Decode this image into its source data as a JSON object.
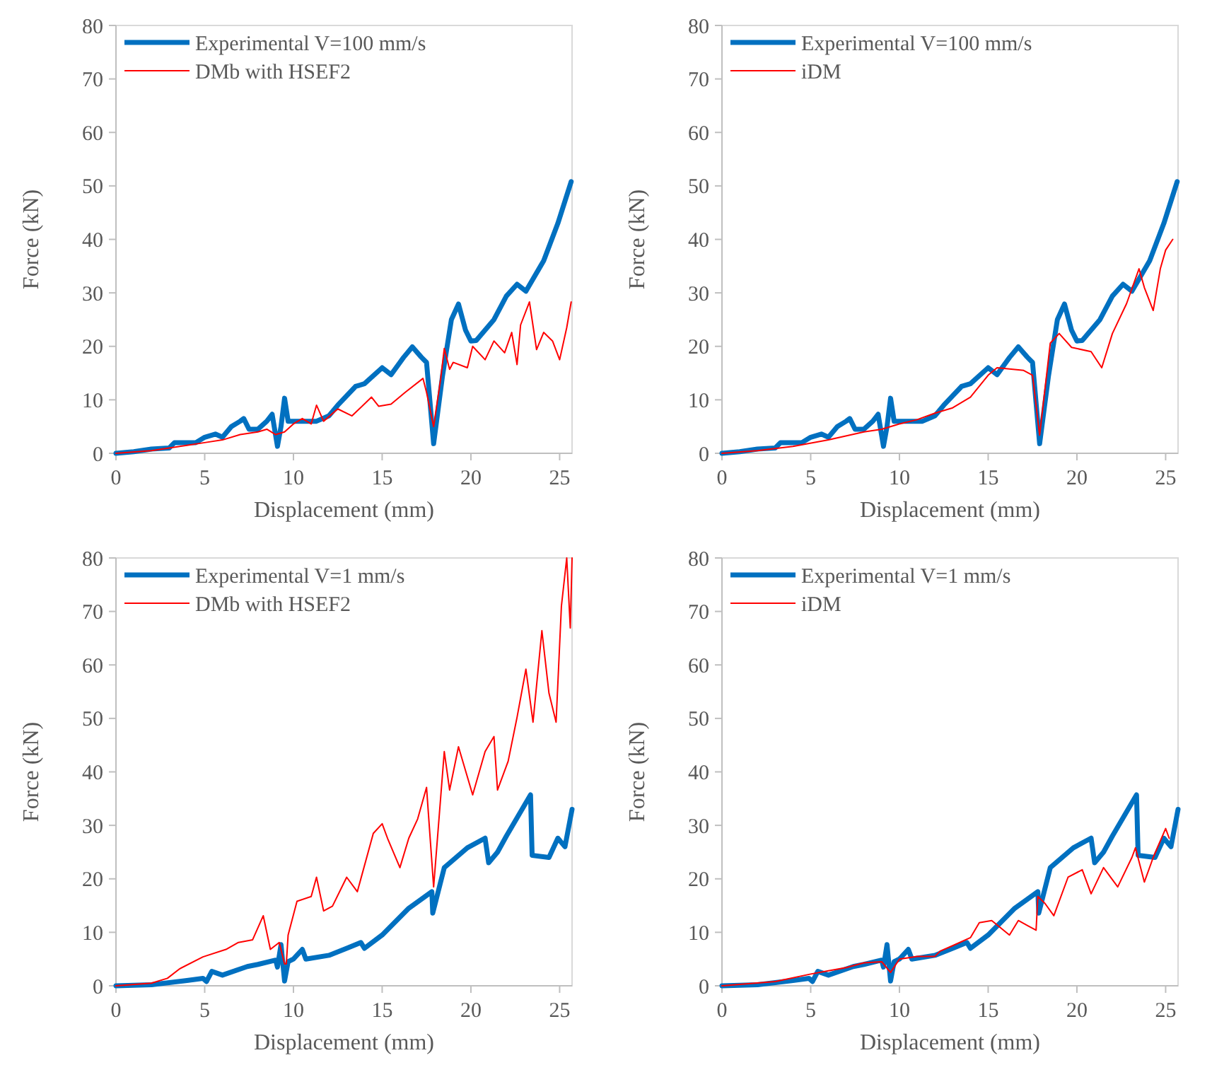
{
  "chart_data": [
    {
      "type": "line",
      "xlabel": "Displacement (mm)",
      "ylabel": "Force (kN)",
      "xlim": [
        0,
        25.7
      ],
      "ylim": [
        0,
        80
      ],
      "xticks": [
        0,
        5,
        10,
        15,
        20,
        25
      ],
      "yticks": [
        0,
        10,
        20,
        30,
        40,
        50,
        60,
        70,
        80
      ],
      "grid": false,
      "legend": "top left",
      "marker": "none",
      "line_style": "solid",
      "series": [
        {
          "name": "Experimental V=100 mm/s",
          "color": "#0070c0",
          "x": [
            0,
            1,
            2,
            3,
            3.3,
            3.8,
            4.1,
            4.5,
            5,
            5.6,
            6,
            6.5,
            7,
            7.2,
            7.5,
            8,
            8.5,
            8.8,
            9.1,
            9.3,
            9.5,
            9.7,
            10,
            10.5,
            11.3,
            12,
            12.5,
            13.5,
            14,
            15,
            15.5,
            16.2,
            16.7,
            17.2,
            17.5,
            17.9,
            18.4,
            18.9,
            19.3,
            19.7,
            20,
            20.3,
            21.3,
            22,
            22.6,
            23.1,
            24.1,
            24.9,
            25.65
          ],
          "values": [
            0,
            0.3,
            0.8,
            1,
            2,
            2,
            2,
            2,
            3,
            3.6,
            3,
            5,
            6,
            6.5,
            4.5,
            4.5,
            6,
            7.3,
            1.3,
            5,
            10.3,
            6,
            6,
            6,
            6,
            7,
            9,
            12.5,
            13,
            16,
            14.7,
            17.9,
            19.9,
            18,
            17,
            1.8,
            14.5,
            25,
            27.9,
            23,
            21,
            21.1,
            25,
            29.4,
            31.6,
            30.3,
            36,
            43,
            50.8
          ]
        },
        {
          "name": "DMb with HSEF2",
          "color": "#ff0000",
          "x": [
            0,
            2,
            4,
            5,
            6,
            7,
            8,
            8.5,
            9,
            9.5,
            10,
            10.5,
            11,
            11.3,
            11.7,
            12.5,
            13.3,
            14.4,
            14.8,
            15.5,
            16.3,
            17.3,
            17.5,
            17.9,
            18.3,
            18.5,
            18.8,
            19,
            19.8,
            20.1,
            20.8,
            21.3,
            21.9,
            22.3,
            22.6,
            22.8,
            23.3,
            23.7,
            24.1,
            24.6,
            25,
            25.4,
            25.65
          ],
          "values": [
            0,
            0.5,
            1.5,
            2,
            2.5,
            3.5,
            4,
            4.5,
            3.5,
            4,
            5.5,
            6.5,
            5.5,
            9,
            6,
            8.3,
            7,
            10.5,
            8.8,
            9.2,
            11.4,
            14,
            11.4,
            5,
            14,
            19.6,
            15.7,
            17,
            16,
            20,
            17.5,
            21,
            18.8,
            22.6,
            16.6,
            24,
            28.3,
            19.4,
            22.6,
            21,
            17.5,
            23.5,
            28.3
          ]
        }
      ]
    },
    {
      "type": "line",
      "xlabel": "Displacement (mm)",
      "ylabel": "Force (kN)",
      "xlim": [
        0,
        25.7
      ],
      "ylim": [
        0,
        80
      ],
      "xticks": [
        0,
        5,
        10,
        15,
        20,
        25
      ],
      "yticks": [
        0,
        10,
        20,
        30,
        40,
        50,
        60,
        70,
        80
      ],
      "grid": false,
      "legend": "top left",
      "marker": "none",
      "line_style": "solid",
      "series": [
        {
          "name": "Experimental V=100 mm/s",
          "color": "#0070c0",
          "x": [
            0,
            1,
            2,
            3,
            3.3,
            3.8,
            4.1,
            4.5,
            5,
            5.6,
            6,
            6.5,
            7,
            7.2,
            7.5,
            8,
            8.5,
            8.8,
            9.1,
            9.3,
            9.5,
            9.7,
            10,
            10.5,
            11.3,
            12,
            12.5,
            13.5,
            14,
            15,
            15.5,
            16.2,
            16.7,
            17.2,
            17.5,
            17.9,
            18.4,
            18.9,
            19.3,
            19.7,
            20,
            20.3,
            21.3,
            22,
            22.6,
            23.1,
            24.1,
            24.9,
            25.65
          ],
          "values": [
            0,
            0.3,
            0.8,
            1,
            2,
            2,
            2,
            2,
            3,
            3.6,
            3,
            5,
            6,
            6.5,
            4.5,
            4.5,
            6,
            7.3,
            1.3,
            5,
            10.3,
            6,
            6,
            6,
            6,
            7,
            9,
            12.5,
            13,
            16,
            14.7,
            17.9,
            19.9,
            18,
            17,
            1.8,
            14.5,
            25,
            27.9,
            23,
            21,
            21.1,
            25,
            29.4,
            31.6,
            30.3,
            36,
            43,
            50.8
          ]
        },
        {
          "name": "iDM",
          "color": "#ff0000",
          "x": [
            0,
            2,
            4,
            6,
            8,
            9,
            9.5,
            10,
            11,
            12,
            13,
            14,
            15,
            15.5,
            17,
            17.5,
            17.9,
            18.5,
            19,
            19.7,
            20.8,
            21.4,
            22,
            22.8,
            23.5,
            23.8,
            24.3,
            24.7,
            25,
            25.4
          ],
          "values": [
            0,
            0.5,
            1.3,
            2.5,
            4,
            4.5,
            5,
            5.5,
            6.3,
            7.5,
            8.5,
            10.5,
            14.6,
            16,
            15.5,
            14.6,
            3.4,
            20.6,
            22.4,
            19.8,
            19,
            16,
            22.4,
            28,
            34.5,
            31,
            26.7,
            34.5,
            38,
            40
          ]
        }
      ]
    },
    {
      "type": "line",
      "xlabel": "Displacement (mm)",
      "ylabel": "Force (kN)",
      "xlim": [
        0,
        25.7
      ],
      "ylim": [
        0,
        80
      ],
      "xticks": [
        0,
        5,
        10,
        15,
        20,
        25
      ],
      "yticks": [
        0,
        10,
        20,
        30,
        40,
        50,
        60,
        70,
        80
      ],
      "grid": false,
      "legend": "top left",
      "marker": "none",
      "line_style": "solid",
      "series": [
        {
          "name": "Experimental V=1 mm/s",
          "color": "#0070c0",
          "x": [
            0,
            2,
            4,
            4.9,
            5.1,
            5.4,
            6,
            7.4,
            8,
            9,
            9.1,
            9.3,
            9.5,
            9.7,
            10,
            10.5,
            10.7,
            12,
            13,
            13.8,
            14,
            15,
            16.5,
            17.8,
            17.85,
            18.5,
            19.8,
            20.8,
            21,
            21.5,
            22,
            23.36,
            23.45,
            24.4,
            24.9,
            25.3,
            25.7
          ],
          "values": [
            0,
            0.2,
            1,
            1.4,
            0.8,
            2.7,
            2,
            3.6,
            4,
            4.8,
            3.5,
            7.7,
            0.9,
            4.5,
            5,
            6.8,
            5,
            5.7,
            7,
            8.1,
            7,
            9.5,
            14.5,
            17.6,
            13.6,
            22.1,
            25.8,
            27.6,
            23,
            25,
            28,
            35.7,
            24.4,
            24,
            27.6,
            26,
            33
          ]
        },
        {
          "name": "DMb with HSEF2",
          "color": "#ff0000",
          "x": [
            0,
            2,
            2.9,
            3.6,
            4.9,
            6.2,
            6.9,
            7.7,
            8.3,
            8.7,
            9.2,
            9.5,
            9.6,
            9.7,
            10.2,
            11,
            11.3,
            11.7,
            12.2,
            13,
            13.6,
            14.5,
            15,
            15.3,
            16,
            16.5,
            17,
            17.5,
            17.9,
            18.5,
            18.8,
            19.3,
            20.1,
            20.8,
            21.3,
            21.5,
            22.1,
            22.6,
            23.1,
            23.5,
            24,
            24.4,
            24.8,
            25.1,
            25.4,
            25.6,
            25.7
          ],
          "values": [
            0,
            0.5,
            1.4,
            3.2,
            5.4,
            6.8,
            8.1,
            8.6,
            13.1,
            6.8,
            8.1,
            4.1,
            4.1,
            9.5,
            15.8,
            16.7,
            20.3,
            14,
            14.9,
            20.3,
            17.6,
            28.5,
            30.3,
            27.6,
            22.1,
            27.6,
            31.2,
            37.1,
            18.5,
            43.8,
            36.6,
            44.7,
            35.7,
            43.8,
            46.6,
            36.6,
            42,
            50.2,
            59.2,
            49.3,
            66.4,
            54.7,
            49.3,
            71,
            80,
            66.9,
            80
          ]
        }
      ]
    },
    {
      "type": "line",
      "xlabel": "Displacement (mm)",
      "ylabel": "Force (kN)",
      "xlim": [
        0,
        25.7
      ],
      "ylim": [
        0,
        80
      ],
      "xticks": [
        0,
        5,
        10,
        15,
        20,
        25
      ],
      "yticks": [
        0,
        10,
        20,
        30,
        40,
        50,
        60,
        70,
        80
      ],
      "grid": false,
      "legend": "top left",
      "marker": "none",
      "line_style": "solid",
      "series": [
        {
          "name": "Experimental V=1 mm/s",
          "color": "#0070c0",
          "x": [
            0,
            2,
            4,
            4.9,
            5.1,
            5.4,
            6,
            7.4,
            8,
            9,
            9.1,
            9.3,
            9.5,
            9.7,
            10,
            10.5,
            10.7,
            12,
            13,
            13.8,
            14,
            15,
            16.5,
            17.8,
            17.85,
            18.5,
            19.8,
            20.8,
            21,
            21.5,
            22,
            23.36,
            23.45,
            24.4,
            24.9,
            25.3,
            25.7
          ],
          "values": [
            0,
            0.2,
            1,
            1.4,
            0.8,
            2.7,
            2,
            3.6,
            4,
            4.8,
            3.5,
            7.7,
            0.9,
            4.5,
            5,
            6.8,
            5,
            5.7,
            7,
            8.1,
            7,
            9.5,
            14.5,
            17.6,
            13.6,
            22.1,
            25.8,
            27.6,
            23,
            25,
            28,
            35.7,
            24.4,
            24,
            27.6,
            26,
            33
          ]
        },
        {
          "name": "iDM",
          "color": "#ff0000",
          "x": [
            0,
            3,
            5,
            6,
            7,
            8,
            9,
            9.5,
            10,
            11,
            12,
            12.3,
            13,
            14,
            14.5,
            15.2,
            16.2,
            16.7,
            17.2,
            17.7,
            17.8,
            18.2,
            18.7,
            19.5,
            20.3,
            20.8,
            21.5,
            22.3,
            23.1,
            23.3,
            23.8,
            24.3,
            25,
            25.2
          ],
          "values": [
            0,
            0.8,
            2.2,
            2.8,
            3.4,
            4.3,
            4.5,
            2.5,
            5,
            5.5,
            5.5,
            6.5,
            7.5,
            9,
            11.8,
            12.2,
            9.5,
            12.2,
            11.3,
            10.4,
            16.7,
            15.4,
            13.1,
            20.3,
            21.7,
            17.2,
            22.1,
            18.5,
            24,
            25.8,
            19.4,
            24,
            29.4,
            27.6
          ]
        }
      ]
    }
  ]
}
